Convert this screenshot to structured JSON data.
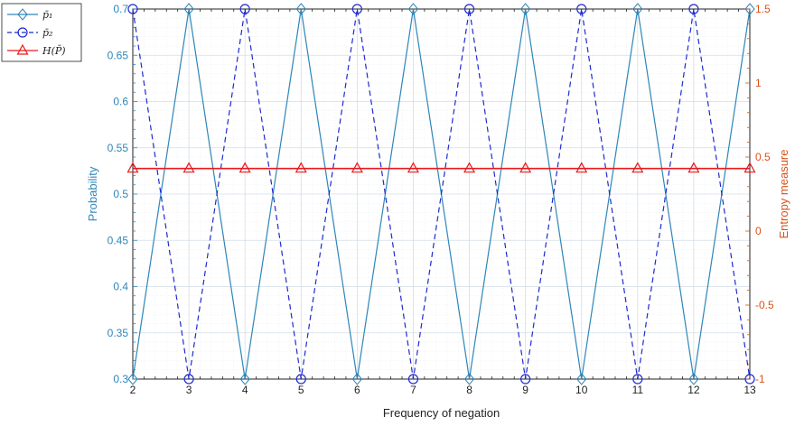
{
  "chart_data": {
    "type": "line",
    "xlabel": "Frequency of negation",
    "ylabel_left": "Probability",
    "ylabel_right": "Entropy measure",
    "x": [
      2,
      3,
      4,
      5,
      6,
      7,
      8,
      9,
      10,
      11,
      12,
      13
    ],
    "xlim": [
      2,
      13
    ],
    "ylim_left": [
      0.3,
      0.7
    ],
    "ylim_right": [
      -1,
      1.5
    ],
    "x_ticks": [
      "2",
      "3",
      "4",
      "5",
      "6",
      "7",
      "8",
      "9",
      "10",
      "11",
      "12",
      "13"
    ],
    "y_ticks_left": [
      "0.3",
      "0.35",
      "0.4",
      "0.45",
      "0.5",
      "0.55",
      "0.6",
      "0.65",
      "0.7"
    ],
    "y_ticks_right": [
      "-1",
      "-0.5",
      "0",
      "0.5",
      "1",
      "1.5"
    ],
    "grid": true,
    "legend_position": "outside-top-left",
    "series": [
      {
        "name": "p̄₁",
        "axis": "left",
        "color": "#2E86B8",
        "line": "solid",
        "marker": "diamond",
        "values": [
          0.3,
          0.7,
          0.3,
          0.7,
          0.3,
          0.7,
          0.3,
          0.7,
          0.3,
          0.7,
          0.3,
          0.7
        ]
      },
      {
        "name": "p̄₂",
        "axis": "left",
        "color": "#1F2BD0",
        "line": "dashed",
        "marker": "circle",
        "values": [
          0.7,
          0.3,
          0.7,
          0.3,
          0.7,
          0.3,
          0.7,
          0.3,
          0.7,
          0.3,
          0.7,
          0.3
        ]
      },
      {
        "name": "H(P̄)",
        "axis": "right",
        "color": "#E8191C",
        "line": "solid",
        "marker": "triangle",
        "values": [
          0.4227,
          0.4227,
          0.4227,
          0.4227,
          0.4227,
          0.4227,
          0.4227,
          0.4227,
          0.4227,
          0.4227,
          0.4227,
          0.4227
        ]
      }
    ],
    "colors": {
      "left_axis": "#2E86B8",
      "right_axis": "#D95319"
    }
  }
}
